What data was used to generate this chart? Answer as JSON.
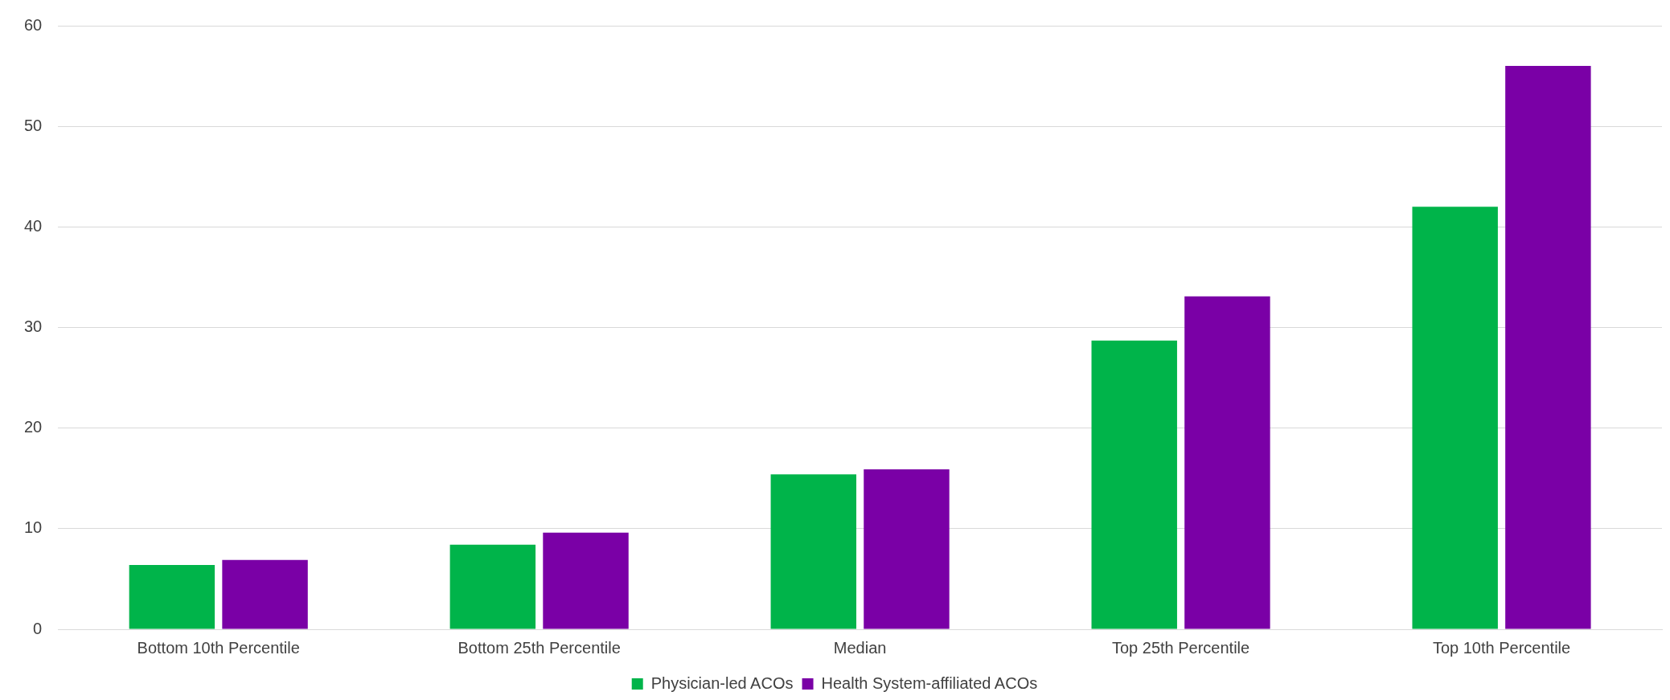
{
  "chart_data": {
    "type": "bar",
    "categories": [
      "Bottom 10th Percentile",
      "Bottom 25th Percentile",
      "Median",
      "Top 25th Percentile",
      "Top 10th Percentile"
    ],
    "series": [
      {
        "name": "Physician-led ACOs",
        "color": "#00b44a",
        "values": [
          6.4,
          8.4,
          15.4,
          28.7,
          42.0
        ]
      },
      {
        "name": "Health System-affiliated ACOs",
        "color": "#7a00a6",
        "values": [
          6.9,
          9.6,
          15.9,
          33.1,
          56.0
        ]
      }
    ],
    "ylim": [
      0,
      60
    ],
    "yticks": [
      0,
      10,
      20,
      30,
      40,
      50,
      60
    ],
    "grid": "y",
    "legend": "bottom"
  }
}
